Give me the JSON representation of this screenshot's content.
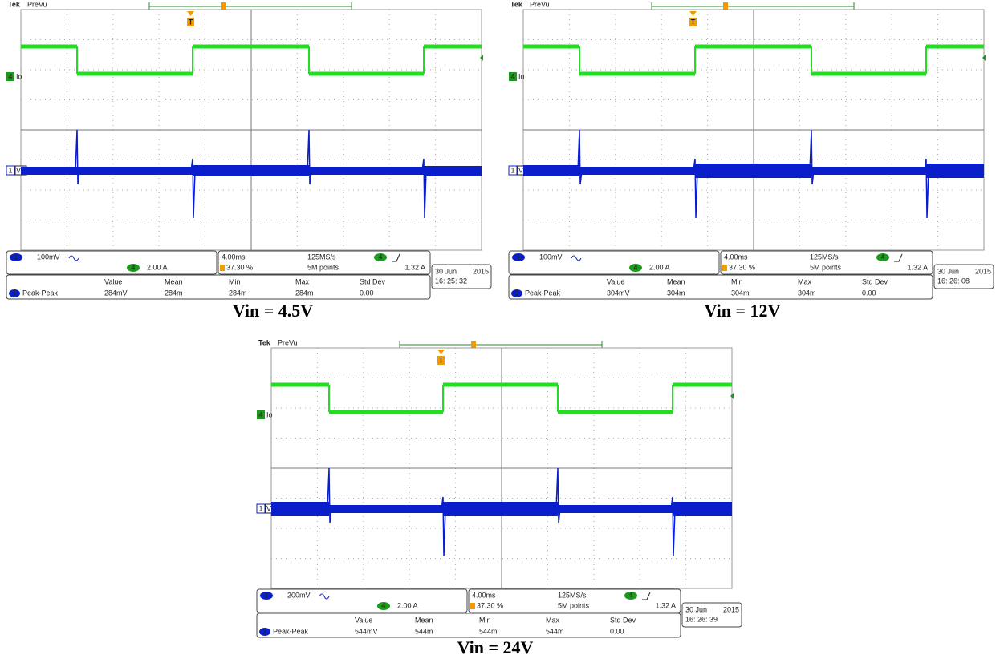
{
  "panels": [
    {
      "brand": "Tek",
      "mode": "PreVu",
      "trigger_marker": "T",
      "ch4_marker": "4",
      "ch4_label": "Io",
      "ch1_marker": "1",
      "ch1_label": "V0",
      "ch1_scale": "100mV",
      "ch4_scale": "2.00 A",
      "timebase": "4.00ms",
      "sample_rate": "125MS/s",
      "trigger_level": "1.32 A",
      "trigger_position": "37.30 %",
      "record_length": "5M points",
      "date": "30 Jun",
      "year": "2015",
      "time": "16: 25: 32",
      "measurement": {
        "headers": [
          "Value",
          "Mean",
          "Min",
          "Max",
          "Std Dev"
        ],
        "name": "Peak-Peak",
        "values": [
          "284mV",
          "284m",
          "284m",
          "284m",
          "0.00"
        ]
      },
      "caption": "Vin = 4.5V"
    },
    {
      "brand": "Tek",
      "mode": "PreVu",
      "trigger_marker": "T",
      "ch4_marker": "4",
      "ch4_label": "Io",
      "ch1_marker": "1",
      "ch1_label": "V0",
      "ch1_scale": "100mV",
      "ch4_scale": "2.00 A",
      "timebase": "4.00ms",
      "sample_rate": "125MS/s",
      "trigger_level": "1.32 A",
      "trigger_position": "37.30 %",
      "record_length": "5M points",
      "date": "30 Jun",
      "year": "2015",
      "time": "16: 26: 08",
      "measurement": {
        "headers": [
          "Value",
          "Mean",
          "Min",
          "Max",
          "Std Dev"
        ],
        "name": "Peak-Peak",
        "values": [
          "304mV",
          "304m",
          "304m",
          "304m",
          "0.00"
        ]
      },
      "caption": "Vin = 12V"
    },
    {
      "brand": "Tek",
      "mode": "PreVu",
      "trigger_marker": "T",
      "ch4_marker": "4",
      "ch4_label": "Io",
      "ch1_marker": "1",
      "ch1_label": "V0",
      "ch1_scale": "200mV",
      "ch4_scale": "2.00 A",
      "timebase": "4.00ms",
      "sample_rate": "125MS/s",
      "trigger_level": "1.32 A",
      "trigger_position": "37.30 %",
      "record_length": "5M points",
      "date": "30 Jun",
      "year": "2015",
      "time": "16: 26: 39",
      "measurement": {
        "headers": [
          "Value",
          "Mean",
          "Min",
          "Max",
          "Std Dev"
        ],
        "name": "Peak-Peak",
        "values": [
          "544mV",
          "544m",
          "544m",
          "544m",
          "0.00"
        ]
      },
      "caption": "Vin = 24V"
    }
  ]
}
